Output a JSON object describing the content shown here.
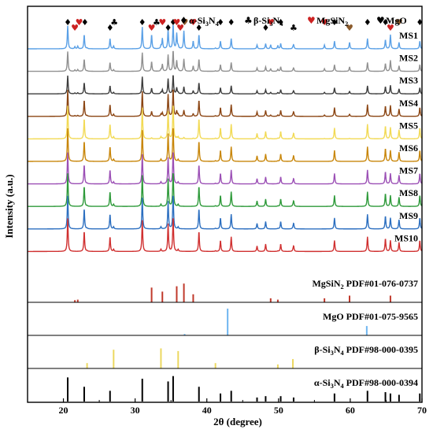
{
  "chart_data": {
    "type": "line",
    "xlabel": "2θ (degree)",
    "ylabel": "Intensity (a.u.)",
    "xlim": [
      15,
      70
    ],
    "x_ticks": [
      20,
      30,
      40,
      50,
      60,
      70
    ],
    "legend": {
      "placement": "top-right",
      "entries": [
        {
          "symbol": "♦",
          "label": "α-Si3N4",
          "text_parts": [
            "α-Si",
            "3",
            "N",
            "4"
          ],
          "color": "#000000"
        },
        {
          "symbol": "♣",
          "label": "β-Si3N4",
          "text_parts": [
            "β-Si",
            "3",
            "N",
            "4"
          ],
          "color": "#000000"
        },
        {
          "symbol": "♥",
          "label": "MgSiN2",
          "text_parts": [
            "MgSiN",
            "2"
          ],
          "color": "#cc2222"
        },
        {
          "symbol": "♥",
          "label": "MgO",
          "text_parts": [
            "MgO"
          ],
          "color": "#000000"
        }
      ]
    },
    "alpha_peaks": [
      20.6,
      22.9,
      26.5,
      31.0,
      34.6,
      35.3,
      38.9,
      41.9,
      43.4,
      47.0,
      48.2,
      50.3,
      52.1,
      57.8,
      62.4,
      64.9,
      65.6,
      66.8,
      69.7
    ],
    "alpha_intensities": [
      0.9,
      0.55,
      0.4,
      0.85,
      0.75,
      0.95,
      0.55,
      0.3,
      0.4,
      0.15,
      0.2,
      0.2,
      0.15,
      0.3,
      0.4,
      0.35,
      0.3,
      0.25,
      0.3
    ],
    "beta_peaks": [
      23.3,
      27.0,
      33.6,
      36.0,
      41.2,
      49.9,
      52.0
    ],
    "beta_intensities": [
      0.2,
      0.7,
      0.75,
      0.65,
      0.2,
      0.15,
      0.35
    ],
    "mgsin2_peaks": [
      21.6,
      22.0,
      32.3,
      33.8,
      35.8,
      36.8,
      38.1,
      48.9,
      49.9,
      56.4,
      59.9,
      65.6
    ],
    "mgsin2_intensities": [
      0.08,
      0.1,
      0.55,
      0.4,
      0.6,
      0.7,
      0.3,
      0.15,
      0.1,
      0.15,
      0.25,
      0.25
    ],
    "mgo_peaks": [
      36.9,
      42.9,
      62.3
    ],
    "mgo_intensities": [
      0.05,
      1.0,
      0.35
    ],
    "patterns": [
      {
        "name": "MS1",
        "color": "#5aa0e6",
        "alpha": 1.0,
        "beta": 0.15,
        "mgsin2": 1.0,
        "scale": 0.7
      },
      {
        "name": "MS2",
        "color": "#909090",
        "alpha": 1.0,
        "beta": 0.1,
        "mgsin2": 0.8,
        "scale": 0.6
      },
      {
        "name": "MS3",
        "color": "#3d3d3d",
        "alpha": 1.0,
        "beta": 0.1,
        "mgsin2": 0.5,
        "scale": 0.55
      },
      {
        "name": "MS4",
        "color": "#8b4513",
        "alpha": 1.0,
        "beta": 0.1,
        "mgsin2": 0.3,
        "scale": 0.8
      },
      {
        "name": "MS5",
        "color": "#f2da55",
        "alpha": 1.0,
        "beta": 0.08,
        "mgsin2": 0.05,
        "scale": 1.0
      },
      {
        "name": "MS6",
        "color": "#c8860a",
        "alpha": 1.0,
        "beta": 0.08,
        "mgsin2": 0.0,
        "scale": 1.0
      },
      {
        "name": "MS7",
        "color": "#9b4fb5",
        "alpha": 1.0,
        "beta": 0.08,
        "mgsin2": 0.0,
        "scale": 0.95
      },
      {
        "name": "MS8",
        "color": "#2e9a3a",
        "alpha": 1.0,
        "beta": 0.08,
        "mgsin2": 0.0,
        "scale": 1.0
      },
      {
        "name": "MS9",
        "color": "#2c6fc0",
        "alpha": 1.0,
        "beta": 0.08,
        "mgsin2": 0.0,
        "scale": 1.0
      },
      {
        "name": "MS10",
        "color": "#d03030",
        "alpha": 1.0,
        "beta": 0.08,
        "mgsin2": 0.0,
        "scale": 1.0
      }
    ],
    "references": [
      {
        "label": "MgSiN2 PDF#01-076-0737",
        "text_parts": [
          "MgSiN",
          "2",
          " PDF#01-076-0737"
        ],
        "color": "#c0392b",
        "phase": "mgsin2"
      },
      {
        "label": "MgO PDF#01-075-9565",
        "text_parts": [
          "MgO PDF#01-075-9565"
        ],
        "color": "#6fb6f0",
        "phase": "mgo"
      },
      {
        "label": "β-Si3N4 PDF#98-000-0395",
        "text_parts": [
          "β-Si",
          "3",
          "N",
          "4",
          " PDF#98-000-0395"
        ],
        "color": "#ecd860",
        "phase": "beta"
      },
      {
        "label": "α-Si3N4 PDF#98-000-0394",
        "text_parts": [
          "α-Si",
          "3",
          "N",
          "4",
          " PDF#98-000-0394"
        ],
        "color": "#000000",
        "phase": "alpha"
      }
    ],
    "ms1_markers": [
      {
        "x": 20.6,
        "symbol": "♦",
        "color": "#000000"
      },
      {
        "x": 21.6,
        "symbol": "♥",
        "color": "#cc2222"
      },
      {
        "x": 22.2,
        "symbol": "♥",
        "color": "#cc2222"
      },
      {
        "x": 23.0,
        "symbol": "♦",
        "color": "#000000"
      },
      {
        "x": 26.5,
        "symbol": "♦",
        "color": "#000000"
      },
      {
        "x": 27.1,
        "symbol": "♣",
        "color": "#000000"
      },
      {
        "x": 31.0,
        "symbol": "♦",
        "color": "#000000"
      },
      {
        "x": 32.3,
        "symbol": "♥",
        "color": "#cc2222"
      },
      {
        "x": 33.0,
        "symbol": "♣",
        "color": "#000000"
      },
      {
        "x": 33.8,
        "symbol": "♥",
        "color": "#cc2222"
      },
      {
        "x": 34.6,
        "symbol": "♦",
        "color": "#000000"
      },
      {
        "x": 35.3,
        "symbol": "♦",
        "color": "#000000"
      },
      {
        "x": 35.8,
        "symbol": "♥",
        "color": "#cc2222"
      },
      {
        "x": 36.3,
        "symbol": "♥",
        "color": "#cc2222"
      },
      {
        "x": 36.9,
        "symbol": "♥",
        "color": "#8b5a2b"
      },
      {
        "x": 38.1,
        "symbol": "♥",
        "color": "#cc2222"
      },
      {
        "x": 38.9,
        "symbol": "♦",
        "color": "#000000"
      },
      {
        "x": 41.9,
        "symbol": "♦",
        "color": "#000000"
      },
      {
        "x": 43.4,
        "symbol": "♦",
        "color": "#000000"
      },
      {
        "x": 48.2,
        "symbol": "♦",
        "color": "#000000"
      },
      {
        "x": 48.9,
        "symbol": "♥",
        "color": "#cc2222"
      },
      {
        "x": 50.3,
        "symbol": "♦",
        "color": "#000000"
      },
      {
        "x": 52.1,
        "symbol": "♣",
        "color": "#000000"
      },
      {
        "x": 56.4,
        "symbol": "♥",
        "color": "#cc2222"
      },
      {
        "x": 57.8,
        "symbol": "♦",
        "color": "#000000"
      },
      {
        "x": 59.9,
        "symbol": "♥",
        "color": "#8b5a2b"
      },
      {
        "x": 62.4,
        "symbol": "♦",
        "color": "#000000"
      },
      {
        "x": 64.9,
        "symbol": "♦",
        "color": "#000000"
      },
      {
        "x": 65.6,
        "symbol": "♥",
        "color": "#cc2222"
      },
      {
        "x": 66.8,
        "symbol": "♥",
        "color": "#8b5a2b"
      },
      {
        "x": 69.7,
        "symbol": "♦",
        "color": "#000000"
      }
    ]
  }
}
